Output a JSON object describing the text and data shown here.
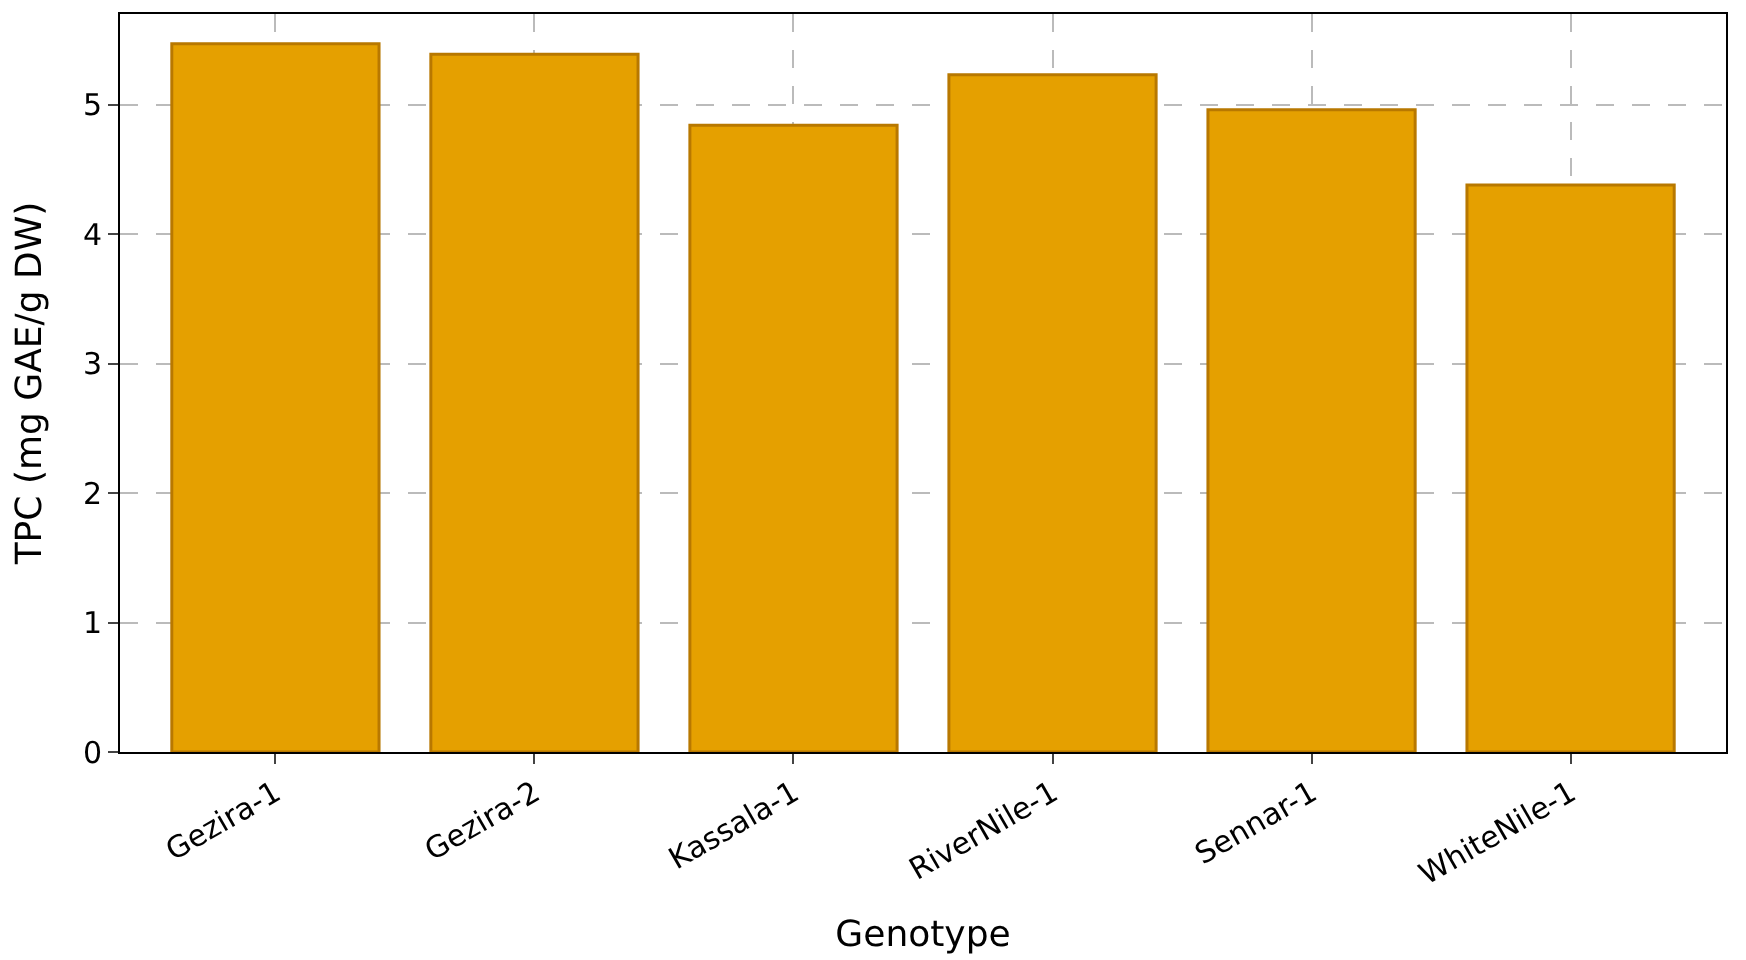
{
  "chart_data": {
    "type": "bar",
    "xlabel": "Genotype",
    "ylabel": "TPC (mg GAE/g DW)",
    "categories": [
      "Gezira-1",
      "Gezira-2",
      "Kassala-1",
      "RiverNile-1",
      "Sennar-1",
      "WhiteNile-1"
    ],
    "values": [
      5.47,
      5.39,
      4.84,
      5.23,
      4.96,
      4.38
    ],
    "color": "#e5a000",
    "ylim": [
      0,
      5.7
    ],
    "yticks": [
      0,
      1,
      2,
      3,
      4,
      5
    ],
    "grid": true,
    "legend": false
  }
}
